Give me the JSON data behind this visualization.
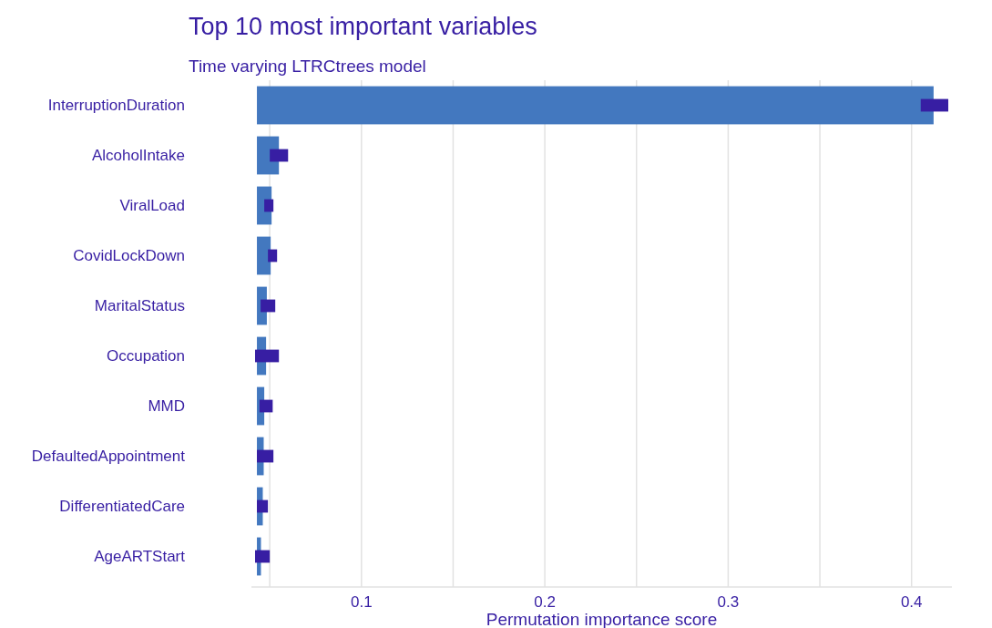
{
  "chart_data": {
    "type": "bar",
    "orientation": "horizontal",
    "title": "Top 10 most important variables",
    "subtitle": "Time varying LTRCtrees model",
    "xlabel": "Permutation importance score",
    "categories": [
      "InterruptionDuration",
      "AlcoholIntake",
      "ViralLoad",
      "CovidLockDown",
      "MaritalStatus",
      "Occupation",
      "MMD",
      "DefaultedAppointment",
      "DifferentiatedCare",
      "AgeARTStart"
    ],
    "base": [
      0.043,
      0.043,
      0.043,
      0.043,
      0.043,
      0.043,
      0.043,
      0.043,
      0.043,
      0.043
    ],
    "values": [
      0.369,
      0.012,
      0.008,
      0.0075,
      0.0054,
      0.005,
      0.004,
      0.0037,
      0.0032,
      0.0022
    ],
    "errors": [
      [
        0.405,
        0.42
      ],
      [
        0.05,
        0.06
      ],
      [
        0.047,
        0.052
      ],
      [
        0.049,
        0.054
      ],
      [
        0.045,
        0.053
      ],
      [
        0.042,
        0.055
      ],
      [
        0.0444,
        0.0516
      ],
      [
        0.043,
        0.052
      ],
      [
        0.043,
        0.049
      ],
      [
        0.042,
        0.05
      ]
    ],
    "color": "#4378bf",
    "xlim": [
      0.04,
      0.422
    ],
    "xticks": [
      {
        "value": 0.05,
        "label": null
      },
      0.1,
      {
        "value": 0.15,
        "label": null
      },
      0.2,
      {
        "value": 0.25,
        "label": null
      },
      0.3,
      {
        "value": 0.35,
        "label": null
      },
      0.4
    ],
    "grid": "x"
  }
}
